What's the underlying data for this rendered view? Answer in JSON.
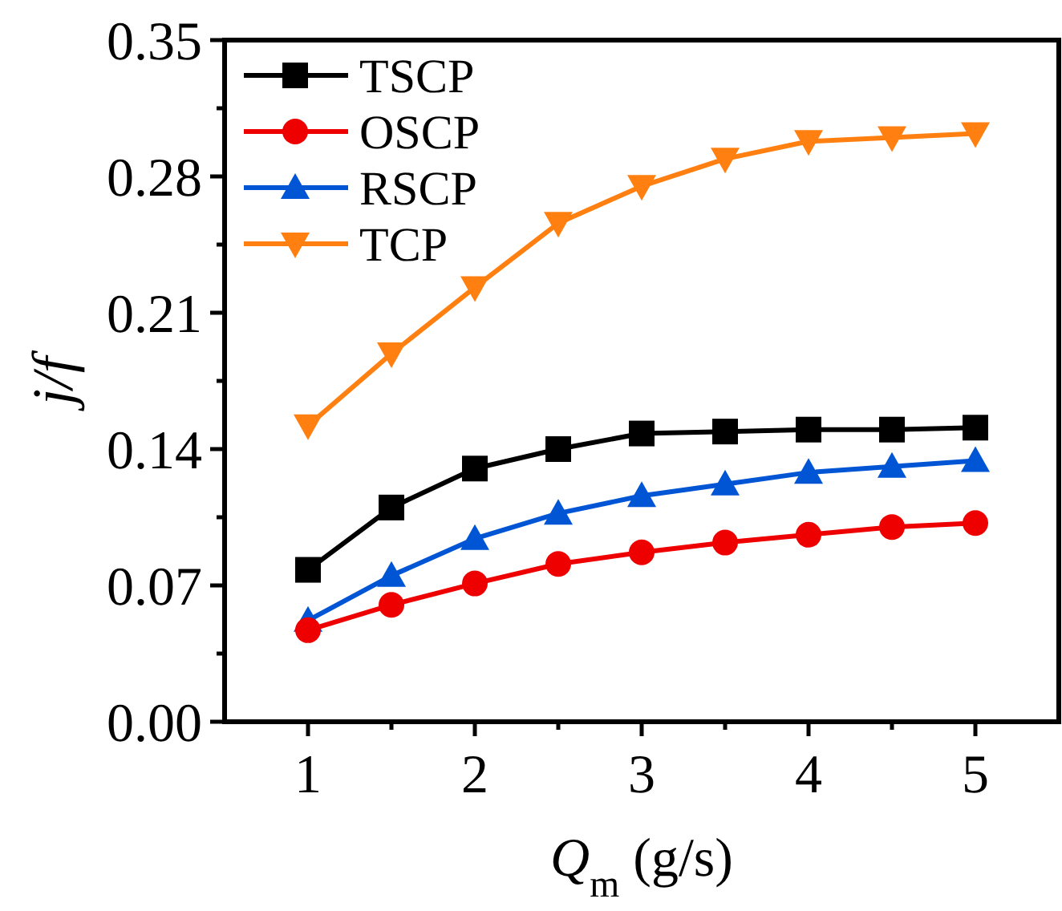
{
  "chart_data": {
    "type": "line",
    "xlabel": "Q$_{m}$ (g/s)",
    "ylabel": "j/f",
    "x": [
      1,
      1.5,
      2,
      2.5,
      3,
      3.5,
      4,
      4.5,
      5
    ],
    "series": [
      {
        "name": "TSCP",
        "color": "#000000",
        "marker": "square",
        "values": [
          0.078,
          0.11,
          0.13,
          0.14,
          0.148,
          0.149,
          0.15,
          0.15,
          0.151
        ]
      },
      {
        "name": "OSCP",
        "color": "#ee0000",
        "marker": "circle",
        "values": [
          0.047,
          0.06,
          0.071,
          0.081,
          0.087,
          0.092,
          0.096,
          0.1,
          0.102
        ]
      },
      {
        "name": "RSCP",
        "color": "#0055d4",
        "marker": "triangle",
        "values": [
          0.052,
          0.075,
          0.094,
          0.107,
          0.116,
          0.122,
          0.128,
          0.131,
          0.134
        ]
      },
      {
        "name": "TCP",
        "color": "#ff8010",
        "marker": "triangle-down",
        "values": [
          0.152,
          0.189,
          0.223,
          0.256,
          0.275,
          0.289,
          0.298,
          0.3,
          0.302
        ]
      }
    ],
    "xlim": [
      0.5,
      5.5
    ],
    "xticks": [
      1,
      {
        "value": 1.5,
        "label": null
      },
      2,
      {
        "value": 2.5,
        "label": null
      },
      3,
      {
        "value": 3.5,
        "label": null
      },
      4,
      {
        "value": 4.5,
        "label": null
      },
      5
    ],
    "ylim": [
      0,
      0.35
    ],
    "yticks": [
      {
        "value": 0,
        "label": "0.00"
      },
      {
        "value": 0.035,
        "label": null
      },
      {
        "value": 0.07,
        "label": "0.07"
      },
      {
        "value": 0.105,
        "label": null
      },
      {
        "value": 0.14,
        "label": "0.14"
      },
      {
        "value": 0.175,
        "label": null
      },
      {
        "value": 0.21,
        "label": "0.21"
      },
      {
        "value": 0.245,
        "label": null
      },
      {
        "value": 0.28,
        "label": "0.28"
      },
      {
        "value": 0.315,
        "label": null
      },
      {
        "value": 0.35,
        "label": "0.35"
      }
    ],
    "grid": false,
    "legend": "top left",
    "line_style": "solid"
  }
}
